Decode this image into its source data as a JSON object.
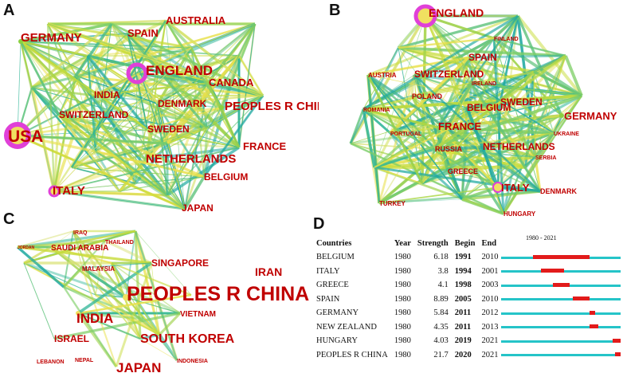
{
  "panels": {
    "a": "A",
    "b": "B",
    "c": "C",
    "d": "D"
  },
  "panel_a": {
    "nodes": [
      {
        "label": "GERMANY"
      },
      {
        "label": "SPAIN"
      },
      {
        "label": "AUSTRALIA"
      },
      {
        "label": "ENGLAND"
      },
      {
        "label": "CANADA"
      },
      {
        "label": "INDIA"
      },
      {
        "label": "PEOPLES R CHINA"
      },
      {
        "label": "DENMARK"
      },
      {
        "label": "SWITZERLAND"
      },
      {
        "label": "USA"
      },
      {
        "label": "SWEDEN"
      },
      {
        "label": "FRANCE"
      },
      {
        "label": "NETHERLANDS"
      },
      {
        "label": "BELGIUM"
      },
      {
        "label": "ITALY"
      },
      {
        "label": "JAPAN"
      }
    ]
  },
  "panel_b": {
    "nodes": [
      {
        "label": "ENGLAND"
      },
      {
        "label": "FINLAND"
      },
      {
        "label": "SPAIN"
      },
      {
        "label": "AUSTRIA"
      },
      {
        "label": "SWITZERLAND"
      },
      {
        "label": "IRELAND"
      },
      {
        "label": "POLAND"
      },
      {
        "label": "ROMANIA"
      },
      {
        "label": "BELGIUM"
      },
      {
        "label": "SWEDEN"
      },
      {
        "label": "GERMANY"
      },
      {
        "label": "FRANCE"
      },
      {
        "label": "PORTUGAL"
      },
      {
        "label": "RUSSIA"
      },
      {
        "label": "UKRAINE"
      },
      {
        "label": "NETHERLANDS"
      },
      {
        "label": "SERBIA"
      },
      {
        "label": "GREECE"
      },
      {
        "label": "ITALY"
      },
      {
        "label": "DENMARK"
      },
      {
        "label": "TURKEY"
      },
      {
        "label": "HUNGARY"
      }
    ]
  },
  "panel_c": {
    "nodes": [
      {
        "label": "IRAQ"
      },
      {
        "label": "THAILAND"
      },
      {
        "label": "JORDAN"
      },
      {
        "label": "SAUDI ARABIA"
      },
      {
        "label": "MALAYSIA"
      },
      {
        "label": "SINGAPORE"
      },
      {
        "label": "IRAN"
      },
      {
        "label": "PEOPLES R CHINA"
      },
      {
        "label": "INDIA"
      },
      {
        "label": "VIETNAM"
      },
      {
        "label": "ISRAEL"
      },
      {
        "label": "SOUTH KOREA"
      },
      {
        "label": "LEBANON"
      },
      {
        "label": "NEPAL"
      },
      {
        "label": "JAPAN"
      },
      {
        "label": "INDONESIA"
      }
    ]
  },
  "panel_d": {
    "range_label": "1980 - 2021",
    "year_min": 1980,
    "year_max": 2021,
    "headers": {
      "countries": "Countries",
      "year": "Year",
      "strength": "Strength",
      "begin": "Begin",
      "end": "End"
    },
    "colors": {
      "baseline": "#25c4c8",
      "burst": "#e21b1b"
    },
    "rows": [
      {
        "country": "BELGIUM",
        "year": "1980",
        "strength": "6.18",
        "begin": "1991",
        "end": "2010",
        "begin_n": 1991,
        "end_n": 2010
      },
      {
        "country": "ITALY",
        "year": "1980",
        "strength": "3.8",
        "begin": "1994",
        "end": "2001",
        "begin_n": 1994,
        "end_n": 2001
      },
      {
        "country": "GREECE",
        "year": "1980",
        "strength": "4.1",
        "begin": "1998",
        "end": "2003",
        "begin_n": 1998,
        "end_n": 2003
      },
      {
        "country": "SPAIN",
        "year": "1980",
        "strength": "8.89",
        "begin": "2005",
        "end": "2010",
        "begin_n": 2005,
        "end_n": 2010
      },
      {
        "country": "GERMANY",
        "year": "1980",
        "strength": "5.84",
        "begin": "2011",
        "end": "2012",
        "begin_n": 2011,
        "end_n": 2012
      },
      {
        "country": "NEW ZEALAND",
        "year": "1980",
        "strength": "4.35",
        "begin": "2011",
        "end": "2013",
        "begin_n": 2011,
        "end_n": 2013
      },
      {
        "country": "HUNGARY",
        "year": "1980",
        "strength": "4.03",
        "begin": "2019",
        "end": "2021",
        "begin_n": 2019,
        "end_n": 2021
      },
      {
        "country": "PEOPLES R CHINA",
        "year": "1980",
        "strength": "21.7",
        "begin": "2020",
        "end": "2021",
        "begin_n": 2020,
        "end_n": 2021
      }
    ]
  }
}
